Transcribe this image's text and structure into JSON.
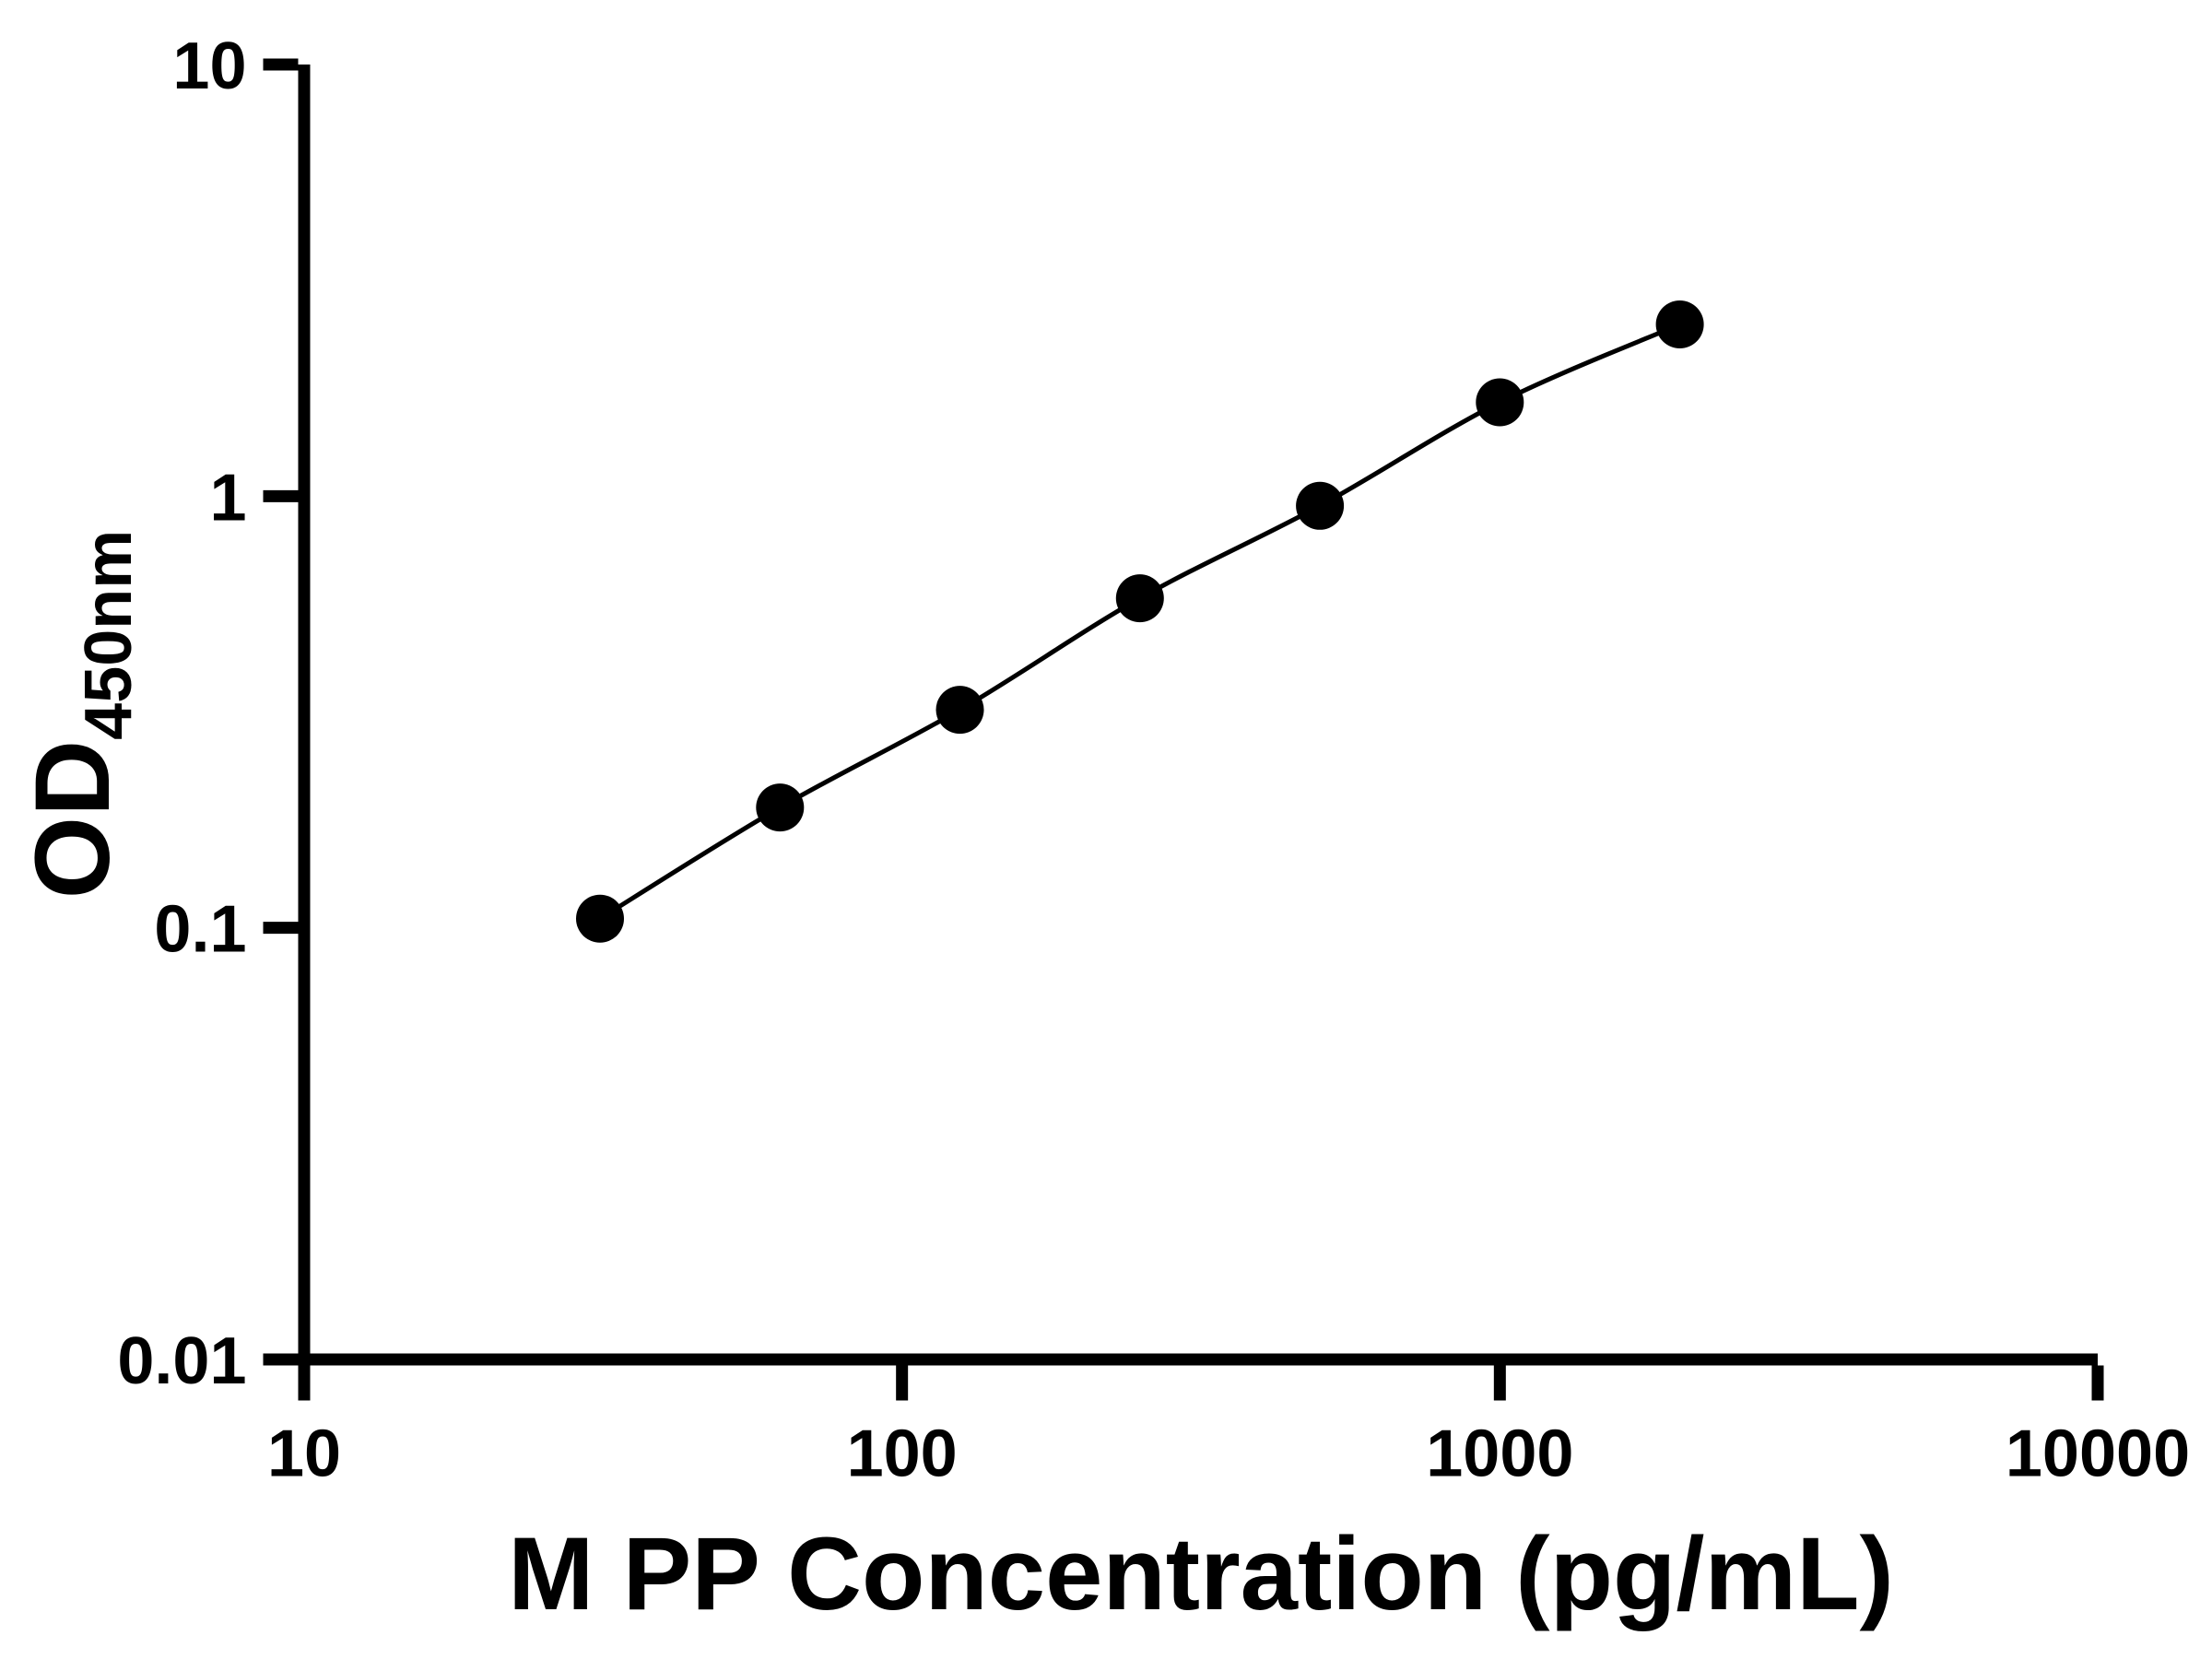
{
  "chart_data": {
    "type": "line",
    "title": "",
    "xlabel": "M PP Concentration (pg/mL)",
    "ylabel_main": "OD",
    "ylabel_sub": "450nm",
    "x_scale": "log",
    "y_scale": "log",
    "xlim": [
      10,
      10000
    ],
    "ylim": [
      0.01,
      10
    ],
    "x_ticks": [
      10,
      100,
      1000,
      10000
    ],
    "x_tick_labels": [
      "10",
      "100",
      "1000",
      "10000"
    ],
    "y_ticks": [
      0.01,
      0.1,
      1,
      10
    ],
    "y_tick_labels": [
      "0.01",
      "0.1",
      "1",
      "10"
    ],
    "x": [
      31.25,
      62.5,
      125,
      250,
      500,
      1000,
      2000
    ],
    "y": [
      0.105,
      0.19,
      0.32,
      0.58,
      0.95,
      1.65,
      2.5
    ],
    "grid": false,
    "legend": false,
    "marker": "circle",
    "marker_color": "#000000",
    "line_color": "#000000",
    "axis_color": "#000000",
    "background": "#ffffff"
  }
}
